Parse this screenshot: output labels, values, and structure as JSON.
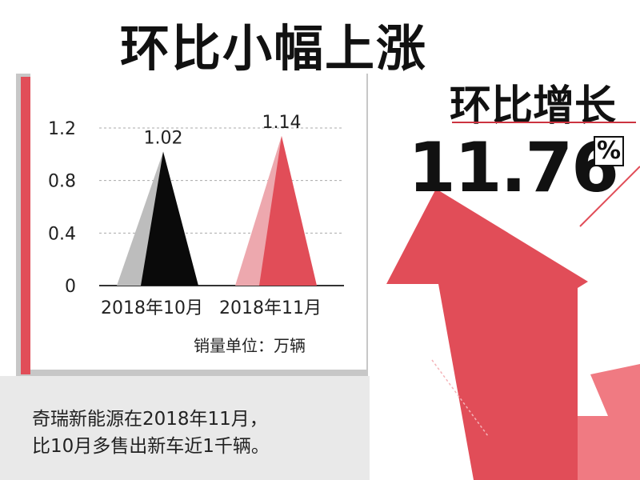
{
  "title": "环比小幅上涨",
  "highlight": {
    "label": "环比增长",
    "value": "11.76",
    "unit": "%"
  },
  "unit_note": "销量单位：万辆",
  "caption": {
    "line1": "奇瑞新能源在2018年11月，",
    "line2": "比10月多售出新车近1千辆。"
  },
  "colors": {
    "accent": "#e14d58",
    "accent_light": "#eda8ae",
    "dark": "#111111",
    "gray": "#bdbdbd"
  },
  "chart_data": {
    "type": "bar",
    "categories": [
      "2018年10月",
      "2018年11月"
    ],
    "values": [
      1.02,
      1.14
    ],
    "data_labels": [
      "1.02",
      "1.14"
    ],
    "y_ticks": [
      "0",
      "0.4",
      "0.8",
      "1.2"
    ],
    "ylim": [
      0,
      1.2
    ],
    "grid": true
  }
}
